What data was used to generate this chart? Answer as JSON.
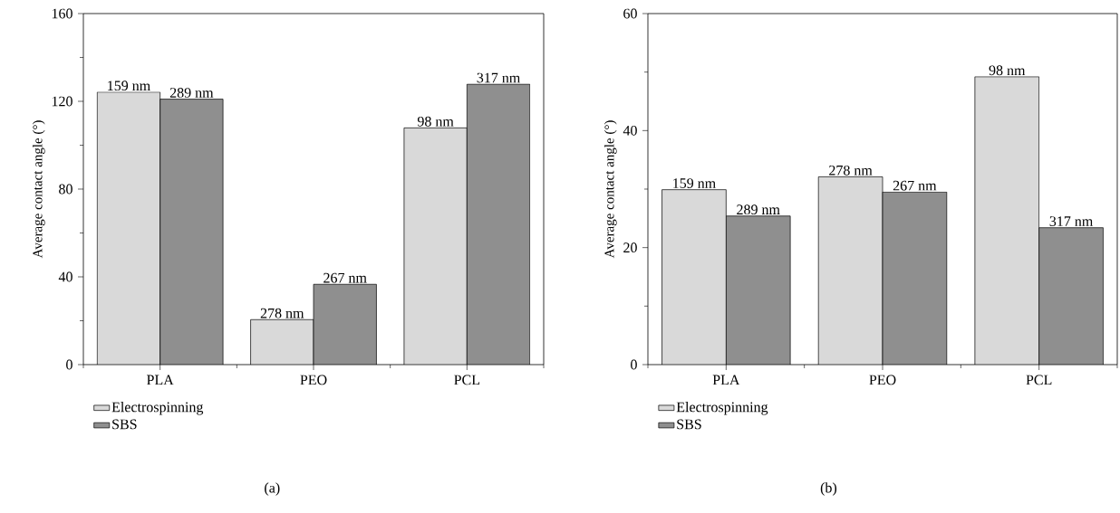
{
  "chart_data": [
    {
      "type": "bar",
      "title": "(a)",
      "ylabel": "Average contact angle (°)",
      "categories": [
        "PLA",
        "PEO",
        "PCL"
      ],
      "series": [
        {
          "name": "Electrospinning",
          "color": "#d9d9d9",
          "values": [
            124.2,
            20.5,
            107.9
          ]
        },
        {
          "name": "SBS",
          "color": "#8f8f8f",
          "values": [
            121.0,
            36.6,
            127.8
          ]
        }
      ],
      "annotations": [
        {
          "text": "159 nm",
          "x": "PLA",
          "y": 124.2
        },
        {
          "text": "278 nm",
          "x": "PEO",
          "y": 20.5
        },
        {
          "text": "98 nm",
          "x": "PCL",
          "y": 107.9
        },
        {
          "text": "289 nm",
          "x": "PLA",
          "y": 121.0
        },
        {
          "text": "267 nm",
          "x": "PEO",
          "y": 36.6
        },
        {
          "text": "317 nm",
          "x": "PCL",
          "y": 127.8
        }
      ],
      "ylim": [
        0,
        160
      ],
      "yticks": [
        0,
        40,
        80,
        120,
        160
      ],
      "legend": "bottom left"
    },
    {
      "type": "bar",
      "title": "(b)",
      "ylabel": "Average contact angle (°)",
      "categories": [
        "PLA",
        "PEO",
        "PCL"
      ],
      "series": [
        {
          "name": "Electrospinning",
          "color": "#d9d9d9",
          "values": [
            29.9,
            32.1,
            49.2
          ]
        },
        {
          "name": "SBS",
          "color": "#8f8f8f",
          "values": [
            25.4,
            29.5,
            23.4
          ]
        }
      ],
      "annotations": [
        {
          "text": "159 nm",
          "x": "PLA",
          "y": 29.9
        },
        {
          "text": "278 nm",
          "x": "PEO",
          "y": 32.1
        },
        {
          "text": "98 nm",
          "x": "PCL",
          "y": 49.2
        },
        {
          "text": "289 nm",
          "x": "PLA",
          "y": 25.4
        },
        {
          "text": "267 nm",
          "x": "PEO",
          "y": 29.5
        },
        {
          "text": "317 nm",
          "x": "PCL",
          "y": 23.4
        }
      ],
      "ylim": [
        0,
        60
      ],
      "yticks": [
        0,
        20,
        40,
        60
      ],
      "legend": "bottom left"
    }
  ]
}
